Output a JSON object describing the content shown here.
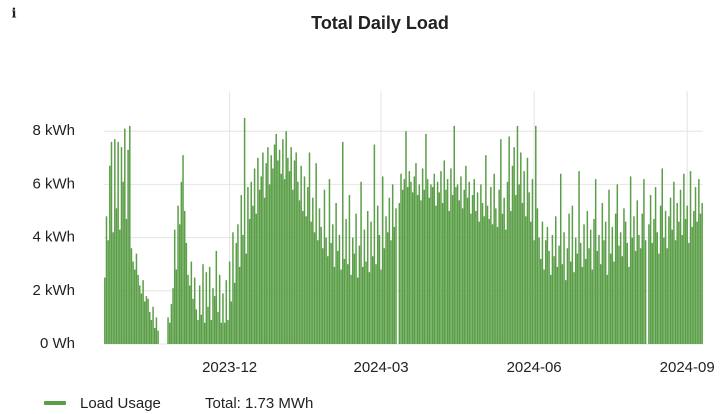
{
  "info_icon": "i",
  "chart_data": {
    "type": "bar",
    "title": "Total Daily Load",
    "series": [
      {
        "name": "Load Usage",
        "color": "#5a9e47",
        "values": [
          2.5,
          4.8,
          3.9,
          6.7,
          7.6,
          4.2,
          7.7,
          5.1,
          7.6,
          4.3,
          7.4,
          6.1,
          8.1,
          4.7,
          7.3,
          8.2,
          3.6,
          3.1,
          2.8,
          3.4,
          2.6,
          2.2,
          1.9,
          2.4,
          1.6,
          1.8,
          1.7,
          1.2,
          0.9,
          1.4,
          0.6,
          1.0,
          0.5,
          0,
          0,
          0,
          0,
          0,
          1.0,
          0.8,
          1.5,
          2.1,
          4.3,
          2.8,
          5.2,
          4.5,
          6.1,
          7.1,
          5.0,
          3.8,
          2.6,
          2.2,
          3.1,
          1.7,
          2.5,
          1.3,
          0.9,
          2.2,
          1.1,
          3.0,
          0.8,
          2.7,
          1.4,
          2.9,
          0.9,
          2.1,
          1.8,
          3.5,
          1.2,
          2.6,
          0.8,
          1.9,
          0.8,
          2.4,
          0.9,
          3.1,
          1.6,
          4.2,
          2.3,
          3.8,
          4.5,
          2.9,
          5.6,
          4.1,
          8.5,
          3.4,
          5.9,
          4.7,
          6.1,
          5.2,
          6.6,
          4.9,
          7.0,
          5.8,
          6.3,
          7.2,
          5.5,
          6.8,
          7.4,
          6.0,
          7.1,
          6.6,
          7.5,
          7.9,
          6.9,
          7.3,
          6.4,
          7.7,
          6.2,
          8.0,
          7.0,
          6.5,
          7.4,
          5.8,
          6.9,
          7.2,
          6.1,
          5.4,
          6.7,
          5.0,
          6.3,
          4.8,
          5.9,
          7.2,
          4.6,
          5.5,
          4.2,
          6.8,
          3.9,
          5.1,
          4.4,
          3.6,
          5.8,
          4.0,
          3.3,
          6.2,
          3.8,
          4.5,
          2.9,
          5.3,
          3.5,
          4.1,
          2.8,
          7.6,
          3.2,
          4.7,
          3.0,
          5.6,
          2.6,
          4.0,
          3.4,
          4.9,
          2.5,
          3.7,
          6.1,
          2.9,
          4.3,
          3.1,
          5.0,
          2.7,
          4.6,
          3.3,
          7.5,
          3.0,
          5.2,
          4.1,
          2.8,
          6.3,
          3.6,
          4.8,
          4.2,
          5.5,
          3.9,
          6.0,
          4.4,
          5.1,
          0,
          5.3,
          6.4,
          5.8,
          6.2,
          8.0,
          5.9,
          6.5,
          6.1,
          5.7,
          6.3,
          6.8,
          5.6,
          6.0,
          5.4,
          6.6,
          5.8,
          7.9,
          6.2,
          5.5,
          6.0,
          5.9,
          6.4,
          5.2,
          6.1,
          5.7,
          6.5,
          5.3,
          6.9,
          5.8,
          6.2,
          5.0,
          6.6,
          5.6,
          8.2,
          5.9,
          6.0,
          5.4,
          6.3,
          5.1,
          5.8,
          6.7,
          5.5,
          6.1,
          4.9,
          5.6,
          6.2,
          5.0,
          5.7,
          4.6,
          6.0,
          5.3,
          4.8,
          7.1,
          5.2,
          4.7,
          5.9,
          4.5,
          6.4,
          5.1,
          4.4,
          5.8,
          7.7,
          4.9,
          5.5,
          4.3,
          6.1,
          7.8,
          5.0,
          6.7,
          7.4,
          5.6,
          8.2,
          6.0,
          7.2,
          5.3,
          6.5,
          4.8,
          7.0,
          5.7,
          4.6,
          6.2,
          3.9,
          8.2,
          5.1,
          4.0,
          3.2,
          4.6,
          2.8,
          3.9,
          4.4,
          3.5,
          2.6,
          4.1,
          3.3,
          4.8,
          2.9,
          3.7,
          6.4,
          3.0,
          4.2,
          2.4,
          3.6,
          4.9,
          3.1,
          5.2,
          2.7,
          4.0,
          3.4,
          6.5,
          3.8,
          2.9,
          4.5,
          3.2,
          5.0,
          3.6,
          4.3,
          2.8,
          4.7,
          6.2,
          3.5,
          4.1,
          3.0,
          5.3,
          3.9,
          4.6,
          2.6,
          5.8,
          3.4,
          4.4,
          3.1,
          4.9,
          6.0,
          3.7,
          4.2,
          3.3,
          5.1,
          4.6,
          3.8,
          2.9,
          6.3,
          4.0,
          4.8,
          3.5,
          5.4,
          4.1,
          3.6,
          4.9,
          6.2,
          3.9,
          0,
          4.5,
          5.6,
          3.8,
          4.7,
          5.9,
          4.2,
          3.4,
          5.2,
          6.6,
          4.0,
          5.0,
          3.6,
          4.8,
          5.5,
          4.3,
          6.1,
          3.9,
          5.3,
          4.6,
          5.8,
          4.1,
          6.4,
          4.7,
          5.2,
          3.8,
          6.5,
          4.4,
          5.0,
          5.9,
          4.6,
          6.2,
          4.9,
          5.3
        ]
      }
    ],
    "legend_total": "Total: 1.73 MWh",
    "xlim": [
      -0.5,
      359.5
    ],
    "xticks": [
      {
        "value": 75,
        "label": "2023-12"
      },
      {
        "value": 166,
        "label": "2024-03"
      },
      {
        "value": 258,
        "label": "2024-06"
      },
      {
        "value": 350,
        "label": "2024-09"
      }
    ],
    "ylim": [
      0,
      9.5
    ],
    "yticks": [
      {
        "value": 0,
        "label": "0 Wh"
      },
      {
        "value": 2,
        "label": "2 kWh"
      },
      {
        "value": 4,
        "label": "4 kWh"
      },
      {
        "value": 6,
        "label": "6 kWh"
      },
      {
        "value": 8,
        "label": "8 kWh"
      }
    ],
    "grid": true
  }
}
